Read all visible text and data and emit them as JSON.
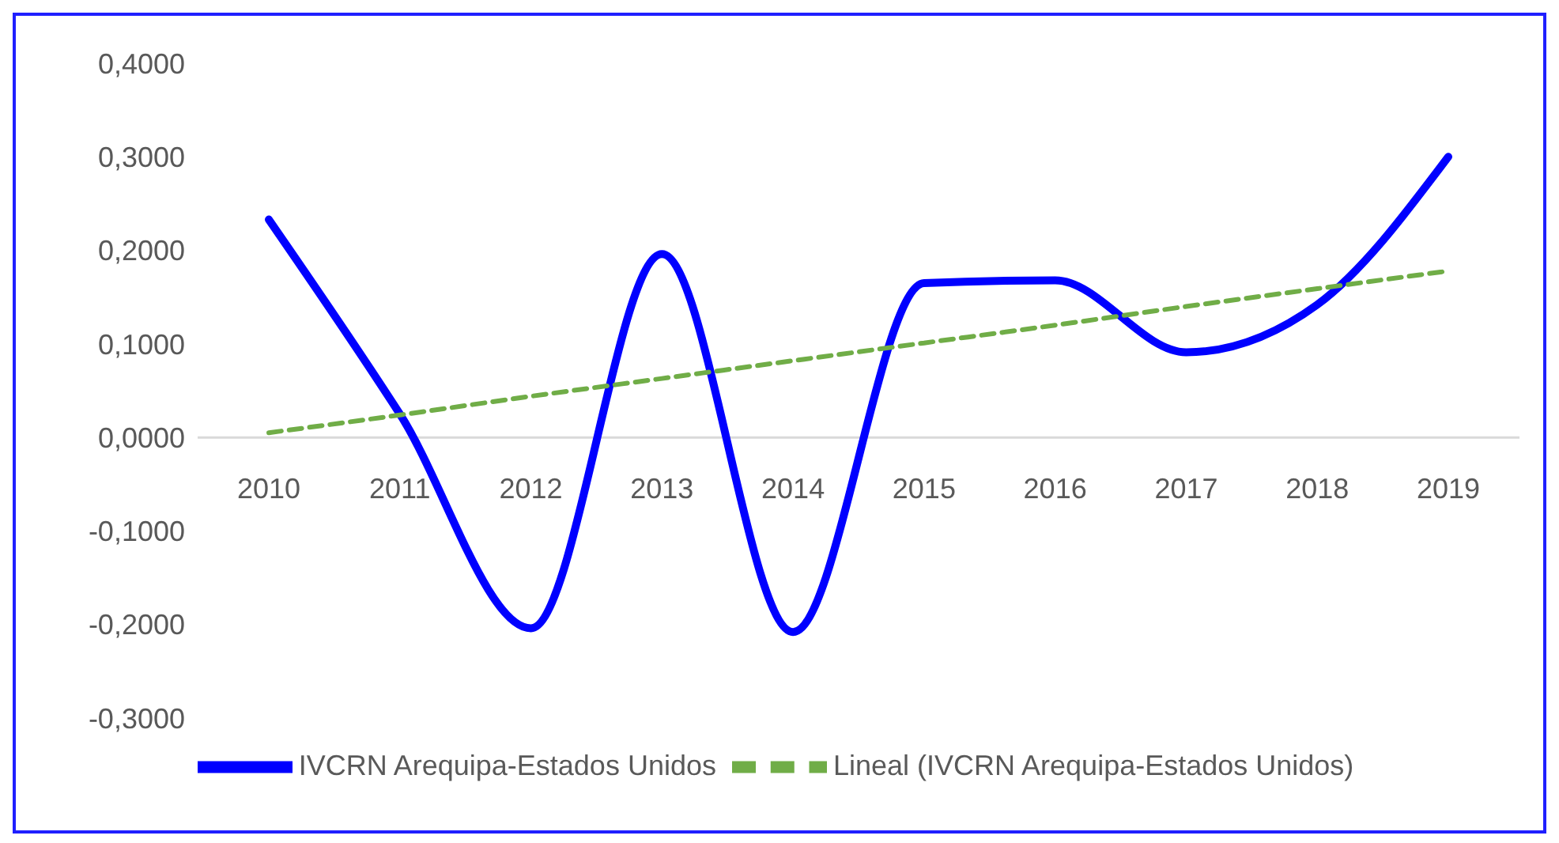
{
  "chart_data": {
    "type": "line",
    "categories": [
      "2010",
      "2011",
      "2012",
      "2013",
      "2014",
      "2015",
      "2016",
      "2017",
      "2018",
      "2019"
    ],
    "series": [
      {
        "name": "IVCRN Arequipa-Estados Unidos",
        "color": "#0000ff",
        "values": [
          0.233,
          0.025,
          -0.204,
          0.196,
          -0.208,
          0.165,
          0.168,
          0.091,
          0.142,
          0.3
        ]
      },
      {
        "name": "Lineal (IVCRN Arequipa-Estados Unidos)",
        "color": "#70ad47",
        "line_style": "dashed",
        "values": [
          0.005,
          0.024,
          0.044,
          0.063,
          0.082,
          0.101,
          0.12,
          0.14,
          0.159,
          0.178
        ]
      }
    ],
    "ylim": [
      -0.3,
      0.4
    ],
    "yticks": [
      {
        "value": -0.3,
        "label": "-0,3000"
      },
      {
        "value": -0.2,
        "label": "-0,2000"
      },
      {
        "value": -0.1,
        "label": "-0,1000"
      },
      {
        "value": 0,
        "label": "0,0000"
      },
      {
        "value": 0.1,
        "label": "0,1000"
      },
      {
        "value": 0.2,
        "label": "0,2000"
      },
      {
        "value": 0.3,
        "label": "0,3000"
      },
      {
        "value": 0.4,
        "label": "0,4000"
      }
    ],
    "grid": false,
    "legend": "bottom",
    "marker": "none",
    "line_style": "solid"
  }
}
